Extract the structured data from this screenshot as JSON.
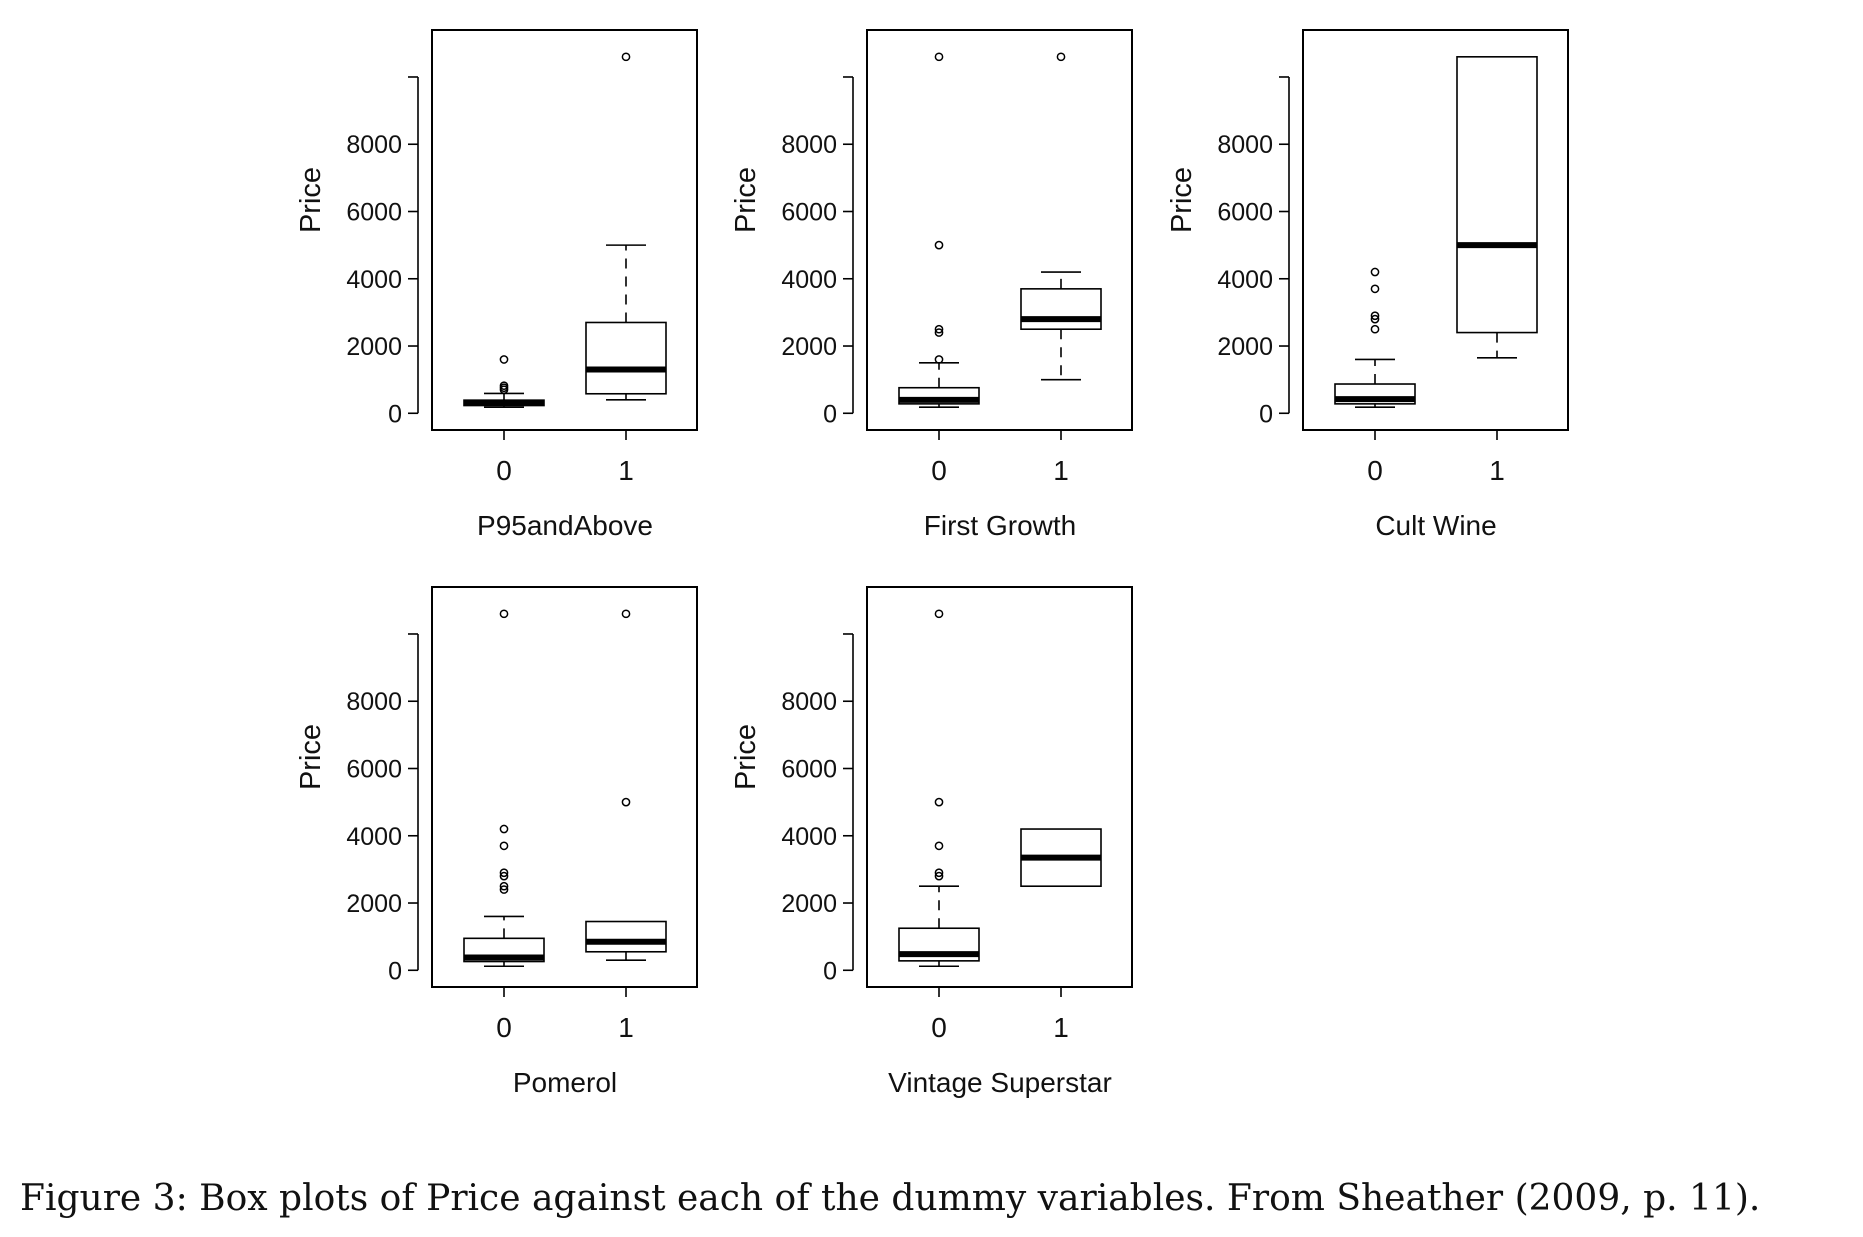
{
  "caption": "Figure 3: Box plots of Price against each of the dummy variables. From Sheather (2009, p. 11).",
  "chart_data": [
    {
      "type": "box",
      "xlabel": "P95andAbove",
      "ylabel": "Price",
      "categories": [
        "0",
        "1"
      ],
      "yticks": [
        0,
        2000,
        4000,
        6000,
        8000
      ],
      "ylim": [
        -200,
        11100
      ],
      "boxes": [
        {
          "category": "0",
          "whisker_low": 180,
          "q1": 230,
          "median": 320,
          "q3": 390,
          "whisker_high": 590,
          "outliers": [
            700,
            760,
            820,
            1600
          ]
        },
        {
          "category": "1",
          "whisker_low": 400,
          "q1": 580,
          "median": 1300,
          "q3": 2700,
          "whisker_high": 5000,
          "outliers": [
            10600
          ]
        }
      ]
    },
    {
      "type": "box",
      "xlabel": "First Growth",
      "ylabel": "Price",
      "categories": [
        "0",
        "1"
      ],
      "yticks": [
        0,
        2000,
        4000,
        6000,
        8000
      ],
      "ylim": [
        -200,
        11100
      ],
      "boxes": [
        {
          "category": "0",
          "whisker_low": 180,
          "q1": 280,
          "median": 400,
          "q3": 760,
          "whisker_high": 1500,
          "outliers": [
            1600,
            2400,
            2500,
            5000,
            10600
          ]
        },
        {
          "category": "1",
          "whisker_low": 1000,
          "q1": 2500,
          "median": 2800,
          "q3": 3700,
          "whisker_high": 4200,
          "outliers": [
            10600
          ]
        }
      ]
    },
    {
      "type": "box",
      "xlabel": "Cult Wine",
      "ylabel": "Price",
      "categories": [
        "0",
        "1"
      ],
      "yticks": [
        0,
        2000,
        4000,
        6000,
        8000
      ],
      "ylim": [
        -200,
        11100
      ],
      "boxes": [
        {
          "category": "0",
          "whisker_low": 180,
          "q1": 280,
          "median": 420,
          "q3": 870,
          "whisker_high": 1600,
          "outliers": [
            2500,
            2800,
            2900,
            3700,
            4200
          ]
        },
        {
          "category": "1",
          "whisker_low": 1650,
          "q1": 2400,
          "median": 5000,
          "q3": 10600,
          "whisker_high": 10600,
          "outliers": []
        }
      ]
    },
    {
      "type": "box",
      "xlabel": "Pomerol",
      "ylabel": "Price",
      "categories": [
        "0",
        "1"
      ],
      "yticks": [
        0,
        2000,
        4000,
        6000,
        8000
      ],
      "ylim": [
        -200,
        11100
      ],
      "boxes": [
        {
          "category": "0",
          "whisker_low": 120,
          "q1": 260,
          "median": 380,
          "q3": 950,
          "whisker_high": 1600,
          "outliers": [
            2400,
            2500,
            2800,
            2900,
            3700,
            4200,
            10600
          ]
        },
        {
          "category": "1",
          "whisker_low": 300,
          "q1": 550,
          "median": 850,
          "q3": 1450,
          "whisker_high": 1450,
          "outliers": [
            5000,
            10600
          ]
        }
      ]
    },
    {
      "type": "box",
      "xlabel": "Vintage Superstar",
      "ylabel": "Price",
      "categories": [
        "0",
        "1"
      ],
      "yticks": [
        0,
        2000,
        4000,
        6000,
        8000
      ],
      "ylim": [
        -200,
        11100
      ],
      "boxes": [
        {
          "category": "0",
          "whisker_low": 120,
          "q1": 280,
          "median": 480,
          "q3": 1250,
          "whisker_high": 2500,
          "outliers": [
            2800,
            2900,
            3700,
            5000,
            10600
          ]
        },
        {
          "category": "1",
          "whisker_low": 2500,
          "q1": 2500,
          "median": 3350,
          "q3": 4200,
          "whisker_high": 4200,
          "outliers": []
        }
      ]
    }
  ]
}
